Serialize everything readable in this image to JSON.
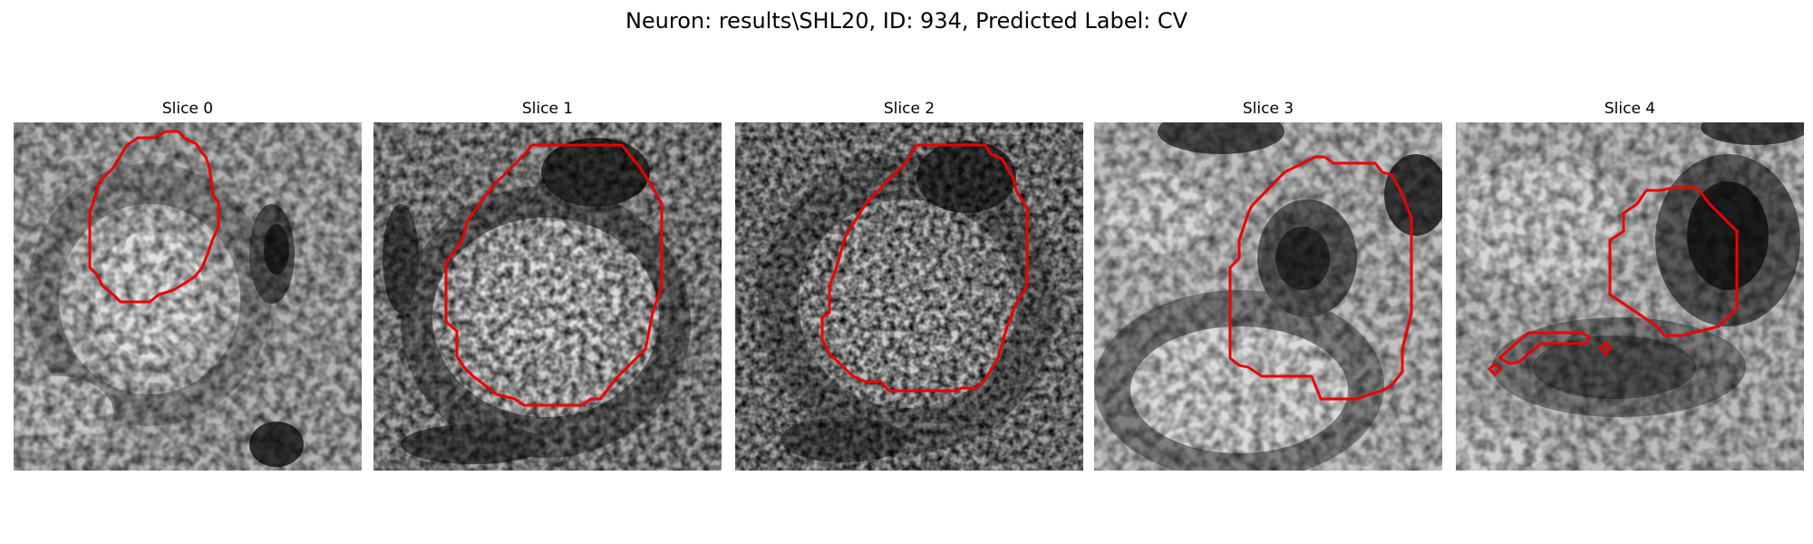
{
  "figure": {
    "title": "Neuron: results\\SHL20, ID: 934, Predicted Label: CV"
  },
  "panels": [
    {
      "title": "Slice 0"
    },
    {
      "title": "Slice 1"
    },
    {
      "title": "Slice 2"
    },
    {
      "title": "Slice 3"
    },
    {
      "title": "Slice 4"
    }
  ],
  "colors": {
    "contour": "#ee0000"
  }
}
